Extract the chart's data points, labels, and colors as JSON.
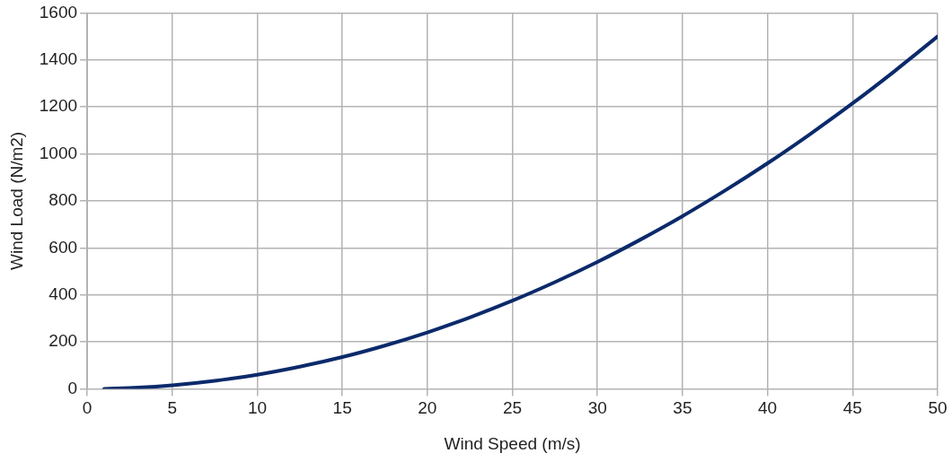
{
  "chart_data": {
    "type": "line",
    "xlabel": "Wind Speed (m/s)",
    "ylabel": "Wind Load (N/m2)",
    "x": [
      1,
      3,
      5,
      7.5,
      10,
      12.5,
      15,
      17.5,
      20,
      22.5,
      25,
      27.5,
      30,
      32.5,
      35,
      37.5,
      40,
      42.5,
      45,
      47.5,
      50
    ],
    "series": [
      {
        "color": "#0b2a6b",
        "values": [
          0,
          5,
          15,
          34,
          60,
          94,
          135,
          184,
          240,
          304,
          375,
          454,
          540,
          634,
          735,
          844,
          960,
          1084,
          1215,
          1354,
          1500
        ]
      }
    ],
    "xlim": [
      0,
      50
    ],
    "xticks": [
      0,
      5,
      10,
      15,
      20,
      25,
      30,
      35,
      40,
      45,
      50
    ],
    "ylim": [
      0,
      1600
    ],
    "yticks": [
      0,
      200,
      400,
      600,
      800,
      1000,
      1200,
      1400,
      1600
    ],
    "grid": true,
    "legend": false,
    "marker": "none",
    "line_style": "solid"
  }
}
